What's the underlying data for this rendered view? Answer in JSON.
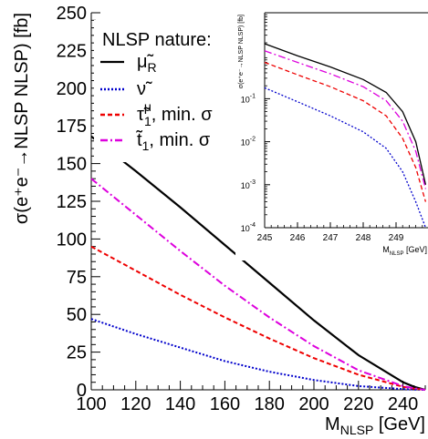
{
  "chart_data": [
    {
      "type": "line",
      "title": "",
      "xlabel": {
        "main": "M",
        "sub": "NLSP",
        "unit": " [GeV]"
      },
      "ylabel": "σ(e⁺e⁻→NLSP NLSP) [fb]",
      "xlim": [
        100,
        250
      ],
      "ylim": [
        0,
        250
      ],
      "x_ticks": [
        100,
        120,
        140,
        160,
        180,
        200,
        220,
        240
      ],
      "y_ticks": [
        0,
        25,
        50,
        75,
        100,
        125,
        150,
        175,
        200,
        225,
        250
      ],
      "grid": false,
      "legend": {
        "title": "NLSP nature:",
        "placement": "top-left",
        "entries": [
          {
            "main": "μ̃",
            "sub": "R",
            "sup": "",
            "suffix": ""
          },
          {
            "main": "ν̃",
            "sub": "",
            "sup": "",
            "suffix": ""
          },
          {
            "main": "τ̃",
            "sub": "1",
            "sup": "μ",
            "suffix": ", min. σ"
          },
          {
            "main": "t̃",
            "sub": "1",
            "sup": "",
            "suffix": ", min. σ"
          }
        ]
      },
      "series": [
        {
          "color": "#000000",
          "dash": "solid",
          "x": [
            100,
            120,
            140,
            160,
            180,
            200,
            220,
            240,
            245,
            250
          ],
          "y": [
            168,
            145,
            121,
            96,
            71,
            46,
            23,
            5,
            2,
            0
          ]
        },
        {
          "color": "#0000cc",
          "dash": "dotted",
          "x": [
            100,
            120,
            140,
            160,
            180,
            200,
            220,
            240,
            245,
            250
          ],
          "y": [
            47,
            37,
            28,
            19,
            12,
            6.5,
            2.5,
            0.5,
            0.2,
            0
          ]
        },
        {
          "color": "#ee0000",
          "dash": "dashed",
          "x": [
            100,
            120,
            140,
            160,
            180,
            200,
            220,
            240,
            245,
            250
          ],
          "y": [
            95,
            79,
            63,
            48,
            34,
            21,
            10,
            2,
            0.8,
            0
          ]
        },
        {
          "color": "#dd00dd",
          "dash": "dashdot",
          "x": [
            100,
            120,
            140,
            160,
            180,
            200,
            220,
            240,
            245,
            250
          ],
          "y": [
            140,
            116,
            92,
            69,
            48,
            29,
            13,
            2.5,
            1,
            0
          ]
        }
      ]
    },
    {
      "type": "line",
      "title": "",
      "xlabel": {
        "main": "M",
        "sub": "NLSP",
        "unit": " [GeV]"
      },
      "ylabel": "σ(e⁺e⁻→NLSP NLSP) [fb]",
      "xlim": [
        245,
        250
      ],
      "ylim": [
        0.0001,
        10
      ],
      "yscale": "log",
      "x_ticks": [
        245,
        246,
        247,
        248,
        249
      ],
      "y_ticks": [
        {
          "value": 0.0001,
          "base": "10",
          "exp": "-4"
        },
        {
          "value": 0.001,
          "base": "10",
          "exp": "-3"
        },
        {
          "value": 0.01,
          "base": "10",
          "exp": "-2"
        },
        {
          "value": 0.1,
          "base": "10",
          "exp": "-1"
        }
      ],
      "grid": false,
      "series": [
        {
          "color": "#000000",
          "dash": "solid",
          "x": [
            245,
            246,
            247,
            248,
            248.7,
            249.2,
            249.6,
            249.9
          ],
          "y": [
            1.9,
            1.0,
            0.55,
            0.28,
            0.14,
            0.05,
            0.01,
            0.001
          ]
        },
        {
          "color": "#dd00dd",
          "dash": "dashdot",
          "x": [
            245,
            246,
            247,
            248,
            248.7,
            249.2,
            249.6,
            249.9
          ],
          "y": [
            1.3,
            0.7,
            0.38,
            0.19,
            0.09,
            0.03,
            0.006,
            0.0008
          ]
        },
        {
          "color": "#ee0000",
          "dash": "dashed",
          "x": [
            245,
            246,
            247,
            248,
            248.7,
            249.2,
            249.6,
            249.9
          ],
          "y": [
            0.7,
            0.36,
            0.19,
            0.09,
            0.04,
            0.012,
            0.0025,
            0.0004
          ]
        },
        {
          "color": "#0000cc",
          "dash": "dotted",
          "x": [
            245,
            246,
            247,
            248,
            248.7,
            249.2,
            249.6,
            249.9
          ],
          "y": [
            0.18,
            0.085,
            0.04,
            0.017,
            0.007,
            0.002,
            0.0004,
            0.0001
          ]
        }
      ]
    }
  ]
}
